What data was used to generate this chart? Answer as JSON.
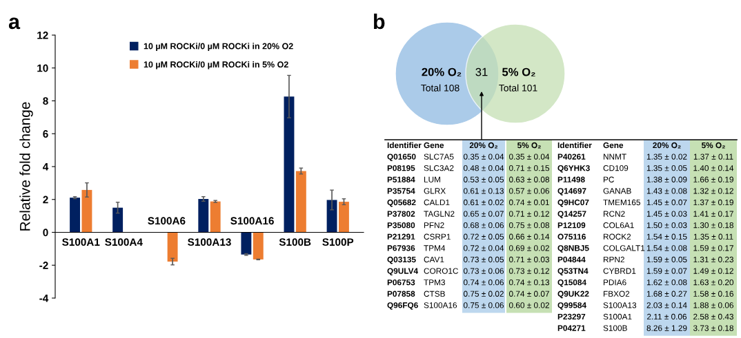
{
  "chart_data": [
    {
      "type": "bar",
      "title": "a",
      "ylabel": "Relative fold change",
      "categories": [
        "S100A1",
        "S100A4",
        "S100A6",
        "S100A13",
        "S100A16",
        "S100B",
        "S100P"
      ],
      "series": [
        {
          "name": "10 µM ROCKi/0 µM ROCKi in 20% O2",
          "color": "#002060",
          "values": [
            2.11,
            1.5,
            null,
            2.03,
            -1.35,
            8.26,
            1.97
          ],
          "errors": [
            0.06,
            0.33,
            null,
            0.14,
            0.05,
            1.29,
            0.6
          ]
        },
        {
          "name": "10 µM ROCKi/0 µM ROCKi in 5% O2",
          "color": "#ed7d31",
          "values": [
            2.58,
            null,
            -1.78,
            1.88,
            -1.65,
            3.73,
            1.86
          ],
          "errors": [
            0.43,
            null,
            0.2,
            0.06,
            0.02,
            0.18,
            0.18
          ]
        }
      ],
      "ylim": [
        -4,
        12
      ],
      "yticks": [
        -4,
        -2,
        0,
        2,
        4,
        6,
        8,
        10,
        12
      ],
      "legend": "top",
      "grid": false
    },
    {
      "type": "other",
      "title": "b",
      "colors": [
        "#9dc3e6",
        "#c5e0b4"
      ],
      "annotations": [
        "20% O₂",
        "Total 108",
        "31",
        "5% O₂",
        "Total 101"
      ]
    },
    {
      "type": "other",
      "colors": [
        null,
        null,
        "#bdd7ee",
        "#c6e0b4"
      ],
      "annotations": [
        "Identifier",
        "Gene",
        "20% O₂",
        "5% O₂",
        "Q01650",
        "SLC7A5",
        "0.35 ± 0.04",
        "0.35 ± 0.04",
        "P08195",
        "SLC3A2",
        "0.48 ± 0.04",
        "0.71 ± 0.15",
        "P51884",
        "LUM",
        "0.53 ± 0.05",
        "0.63 ± 0.08",
        "P35754",
        "GLRX",
        "0.61 ± 0.13",
        "0.57 ± 0.06",
        "Q05682",
        "CALD1",
        "0.61 ± 0.02",
        "0.74 ± 0.01",
        "P37802",
        "TAGLN2",
        "0.65 ± 0.07",
        "0.71 ± 0.12",
        "P35080",
        "PFN2",
        "0.68 ± 0.06",
        "0.75 ± 0.08",
        "P21291",
        "CSRP1",
        "0.72 ± 0.05",
        "0.66 ± 0.14",
        "P67936",
        "TPM4",
        "0.72 ± 0.04",
        "0.69 ± 0.02",
        "Q03135",
        "CAV1",
        "0.73 ± 0.05",
        "0.71 ± 0.03",
        "Q9ULV4",
        "CORO1C",
        "0.73 ± 0.06",
        "0.73 ± 0.12",
        "P06753",
        "TPM3",
        "0.74 ± 0.06",
        "0.74 ± 0.13",
        "P07858",
        "CTSB",
        "0.75 ± 0.02",
        "0.74 ± 0.07",
        "Q96FQ6",
        "S100A16",
        "0.75 ± 0.06",
        "0.60 ± 0.02"
      ]
    },
    {
      "type": "other",
      "colors": [
        null,
        null,
        "#bdd7ee",
        "#c6e0b4"
      ],
      "annotations": [
        "Identifier",
        "Gene",
        "20% O₂",
        "5% O₂",
        "P40261",
        "NNMT",
        "1.35 ± 0.02",
        "1.37 ± 0.11",
        "Q6YHK3",
        "CD109",
        "1.35 ± 0.05",
        "1.40 ± 0.14",
        "P11498",
        "PC",
        "1.38 ± 0.09",
        "1.66 ± 0.19",
        "Q14697",
        "GANAB",
        "1.43 ± 0.08",
        "1.32 ± 0.12",
        "Q9HC07",
        "TMEM165",
        "1.45 ± 0.07",
        "1.37 ± 0.19",
        "Q14257",
        "RCN2",
        "1.45 ± 0.03",
        "1.41 ± 0.17",
        "P12109",
        "COL6A1",
        "1.50 ± 0.03",
        "1.30 ± 0.18",
        "O75116",
        "ROCK2",
        "1.54 ± 0.15",
        "1.35 ± 0.11",
        "Q8NBJ5",
        "COLGALT1",
        "1.54 ± 0.08",
        "1.59 ± 0.17",
        "P04844",
        "RPN2",
        "1.59 ± 0.05",
        "1.31 ± 0.23",
        "Q53TN4",
        "CYBRD1",
        "1.59 ± 0.07",
        "1.49 ± 0.12",
        "Q15084",
        "PDIA6",
        "1.62 ± 0.08",
        "1.63 ± 0.20",
        "Q9UK22",
        "FBXO2",
        "1.68 ± 0.27",
        "1.58 ± 0.16",
        "Q99584",
        "S100A13",
        "2.03 ± 0.14",
        "1.88 ± 0.06",
        "P23297",
        "S100A1",
        "2.11 ± 0.06",
        "2.58 ± 0.43",
        "P04271",
        "S100B",
        "8.26 ± 1.29",
        "3.73 ± 0.18"
      ]
    }
  ]
}
